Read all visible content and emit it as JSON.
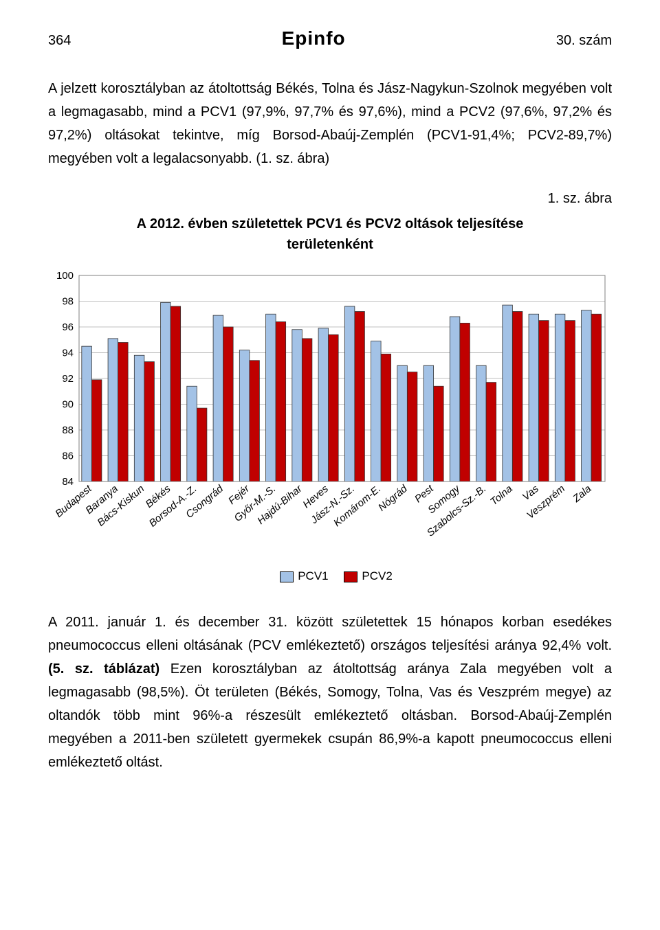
{
  "header": {
    "page_number": "364",
    "logo": "Epinfo",
    "issue": "30. szám"
  },
  "paragraph1": "A jelzett korosztályban az átoltottság Békés, Tolna és Jász-Nagykun-Szolnok megyében volt a legmagasabb, mind a PCV1 (97,9%, 97,7% és 97,6%), mind a PCV2 (97,6%, 97,2% és 97,2%) oltásokat tekintve, míg Borsod-Abaúj-Zemplén (PCV1-91,4%; PCV2-89,7%) megyében volt a legalacsonyabb. (1. sz. ábra)",
  "figure_label": "1. sz. ábra",
  "chart": {
    "type": "bar",
    "title_line1": "A 2012. évben születettek PCV1 és PCV2 oltások teljesítése",
    "title_line2": "területenként",
    "title_fontsize": 20,
    "ylim": [
      84,
      100
    ],
    "ytick_step": 2,
    "grid_color": "#bfbfbf",
    "border_color": "#7f7f7f",
    "background_color": "#ffffff",
    "bar_colors": {
      "pcv1": "#a3c2e6",
      "pcv2": "#c00000"
    },
    "bar_border_color": "#333333",
    "axis_label_fontsize": 15,
    "categories": [
      "Budapest",
      "Baranya",
      "Bács-Kiskun",
      "Békés",
      "Borsod-A.-Z.",
      "Csongrád",
      "Fejér",
      "Győr-M.-S.",
      "Hajdú-Bihar",
      "Heves",
      "Jász-N.-Sz.",
      "Komárom-E.",
      "Nógrád",
      "Pest",
      "Somogy",
      "Szabolcs-Sz.-B.",
      "Tolna",
      "Vas",
      "Veszprém",
      "Zala"
    ],
    "series": {
      "pcv1": [
        94.5,
        95.1,
        93.8,
        97.9,
        91.4,
        96.9,
        94.2,
        97.0,
        95.8,
        95.9,
        97.6,
        94.9,
        93.0,
        93.0,
        96.8,
        93.0,
        97.7,
        97.0,
        97.0,
        97.3
      ],
      "pcv2": [
        91.9,
        94.8,
        93.3,
        97.6,
        89.7,
        96.0,
        93.4,
        96.4,
        95.1,
        95.4,
        97.2,
        93.9,
        92.5,
        91.4,
        96.3,
        91.7,
        97.2,
        96.5,
        96.5,
        97.0
      ]
    },
    "legend": {
      "pcv1": "PCV1",
      "pcv2": "PCV2"
    }
  },
  "paragraph2_pieces": {
    "p1": "A 2011. január 1. és december 31. között születettek 15 hónapos korban esedékes pneumococcus elleni oltásának (PCV emlékeztető) országos teljesítési aránya 92,4% volt. ",
    "bold": "(5. sz. táblázat)",
    "p2": " Ezen korosztályban az átoltottság aránya Zala megyében volt a legmagasabb (98,5%). Öt területen (Békés, Somogy, Tolna, Vas és Veszprém megye) az oltandók több mint 96%-a részesült emlékeztető oltásban. Borsod-Abaúj-Zemplén megyében a 2011-ben született gyermekek csupán 86,9%-a kapott pneumococcus elleni emlékeztető oltást."
  }
}
